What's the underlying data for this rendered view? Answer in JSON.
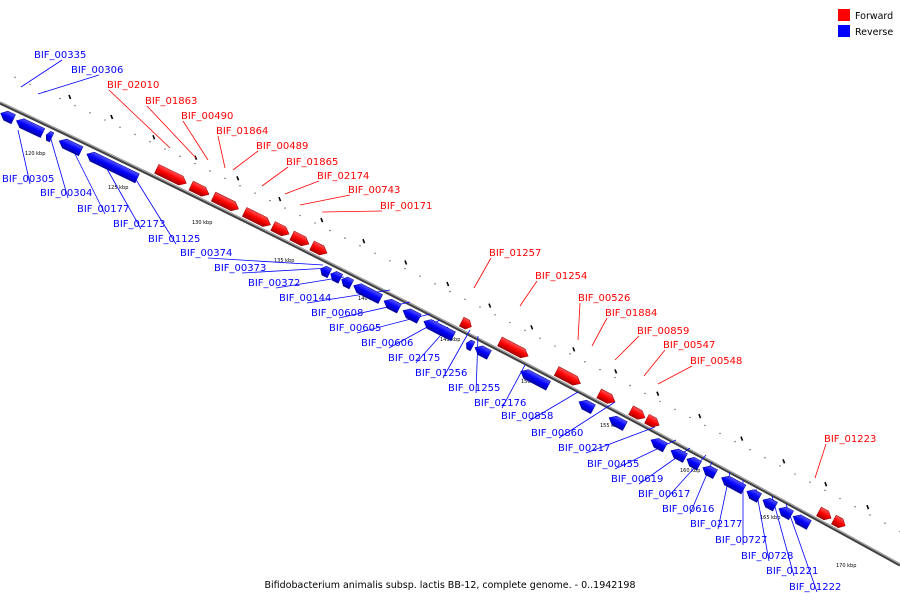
{
  "caption": "Bifidobacterium animalis subsp. lactis BB-12, complete genome. - 0..1942198",
  "legend": [
    {
      "label": "Forward",
      "color": "#ff0000"
    },
    {
      "label": "Reverse",
      "color": "#0000ff"
    }
  ],
  "colors": {
    "forward": "#ff0000",
    "reverse": "#0000ff",
    "backbone": "#808080"
  },
  "ticks": [
    "120 kbp",
    "125 kbp",
    "130 kbp",
    "135 kbp",
    "140 kbp",
    "145 kbp",
    "150 kbp",
    "155 kbp",
    "160 kbp",
    "165 kbp",
    "170 kbp"
  ],
  "forward_genes": [
    "BIF_02010",
    "BIF_01863",
    "BIF_00490",
    "BIF_01864",
    "BIF_00489",
    "BIF_01865",
    "BIF_02174",
    "BIF_00743",
    "BIF_00171",
    "BIF_01257",
    "BIF_01254",
    "BIF_00526",
    "BIF_01884",
    "BIF_00859",
    "BIF_00547",
    "BIF_00548",
    "BIF_01223"
  ],
  "reverse_genes": [
    "BIF_00335",
    "BIF_00306",
    "BIF_00305",
    "BIF_00304",
    "BIF_00177",
    "BIF_02173",
    "BIF_01125",
    "BIF_00374",
    "BIF_00373",
    "BIF_00372",
    "BIF_00144",
    "BIF_00608",
    "BIF_00605",
    "BIF_00606",
    "BIF_02175",
    "BIF_01256",
    "BIF_01255",
    "BIF_02176",
    "BIF_00858",
    "BIF_00860",
    "BIF_00217",
    "BIF_00455",
    "BIF_00619",
    "BIF_00617",
    "BIF_00616",
    "BIF_02177",
    "BIF_00727",
    "BIF_00728",
    "BIF_01221",
    "BIF_01222"
  ]
}
